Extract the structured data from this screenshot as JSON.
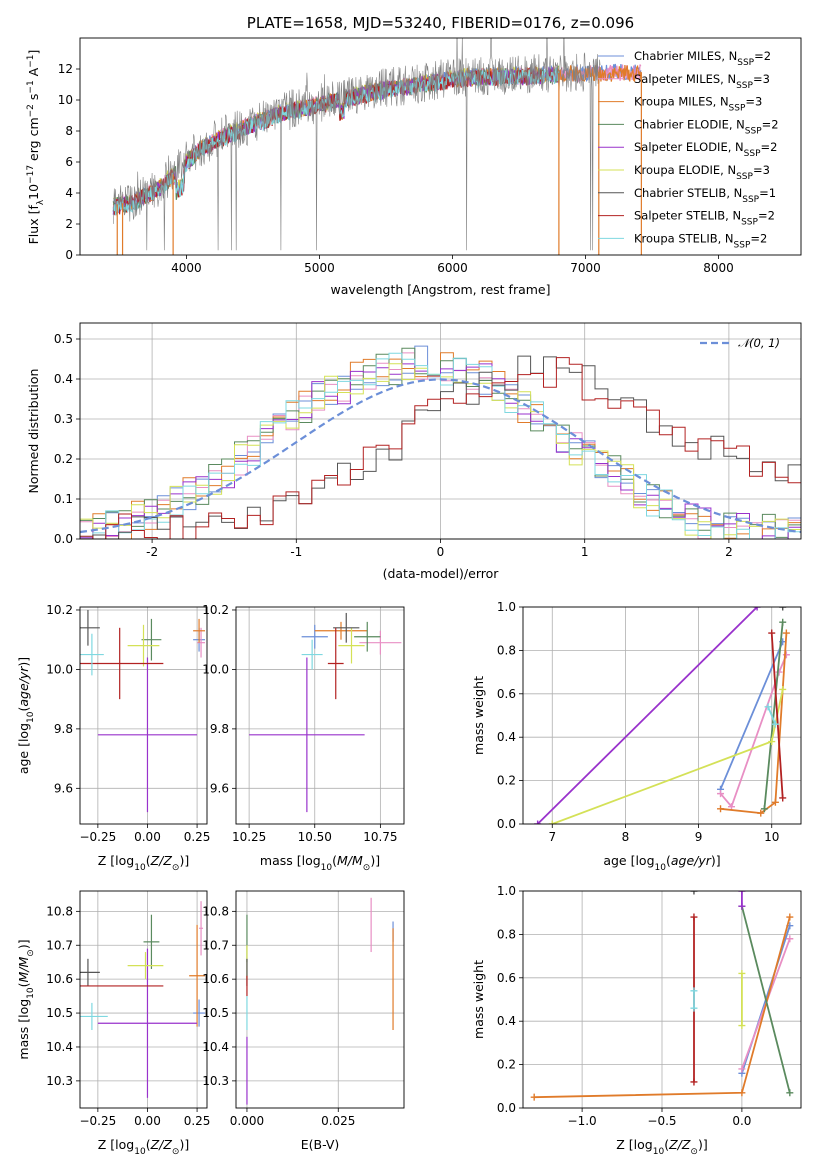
{
  "figure_title": "PLATE=1658, MJD=53240, FIBERID=0176, z=0.096",
  "chart_data": [
    {
      "id": "spectrum",
      "type": "line",
      "title": "PLATE=1658, MJD=53240, FIBERID=0176, z=0.096",
      "xlabel": "wavelength [Angstrom, rest frame]",
      "ylabel": "Flux [f",
      "xlim": [
        3200,
        8620
      ],
      "ylim": [
        0,
        14
      ],
      "xticks": [
        4000,
        5000,
        6000,
        7000,
        8000
      ],
      "yticks": [
        0,
        2,
        4,
        6,
        8,
        10,
        12
      ],
      "grid": false,
      "legend_position": "top-right",
      "legend": [
        {
          "name": "Chabrier MILES, N",
          "ssp": "=2",
          "color": "#6c8fd8"
        },
        {
          "name": "Salpeter MILES, N",
          "ssp": "=3",
          "color": "#e88fc4"
        },
        {
          "name": "Kroupa MILES, N",
          "ssp": "=3",
          "color": "#e07b2a"
        },
        {
          "name": "Chabrier ELODIE, N",
          "ssp": "=2",
          "color": "#5a8a5e"
        },
        {
          "name": "Salpeter ELODIE, N",
          "ssp": "=2",
          "color": "#9932cc"
        },
        {
          "name": "Kroupa ELODIE, N",
          "ssp": "=3",
          "color": "#d4e157"
        },
        {
          "name": "Chabrier STELIB, N",
          "ssp": "=1",
          "color": "#555555"
        },
        {
          "name": "Salpeter STELIB, N",
          "ssp": "=2",
          "color": "#b22222"
        },
        {
          "name": "Kroupa STELIB, N",
          "ssp": "=2",
          "color": "#7fd8e0"
        }
      ],
      "continuum": [
        [
          3450,
          3.2
        ],
        [
          3600,
          3.5
        ],
        [
          3800,
          4.4
        ],
        [
          3950,
          5.6
        ],
        [
          4100,
          6.9
        ],
        [
          4300,
          7.8
        ],
        [
          4500,
          8.5
        ],
        [
          4700,
          9.2
        ],
        [
          4900,
          9.6
        ],
        [
          5100,
          10.0
        ],
        [
          5300,
          10.4
        ],
        [
          5500,
          10.8
        ],
        [
          5700,
          11.0
        ],
        [
          5900,
          11.3
        ],
        [
          6100,
          11.5
        ],
        [
          6300,
          11.6
        ],
        [
          6500,
          11.6
        ],
        [
          6700,
          11.7
        ],
        [
          6900,
          11.8
        ],
        [
          7100,
          11.8
        ],
        [
          7400,
          11.8
        ]
      ],
      "spikes": [
        [
          3480,
          0
        ],
        [
          3520,
          0
        ],
        [
          3900,
          0
        ],
        [
          6800,
          0
        ],
        [
          7100,
          0
        ],
        [
          7420,
          0
        ]
      ]
    },
    {
      "id": "residuals",
      "type": "line",
      "xlabel": "(data-model)/error",
      "ylabel": "Normed distribution",
      "xlim": [
        -2.5,
        2.5
      ],
      "ylim": [
        0,
        0.54
      ],
      "xticks": [
        -2,
        -1,
        0,
        1,
        2
      ],
      "yticks": [
        0.0,
        0.1,
        0.2,
        0.3,
        0.4,
        0.5
      ],
      "grid": true,
      "legend_position": "top-right",
      "legend_label": "𝒩(0, 1)",
      "gaussian_color": "#6c8fd8",
      "centered_hist": [
        0.02,
        0.03,
        0.03,
        0.04,
        0.05,
        0.06,
        0.08,
        0.09,
        0.11,
        0.13,
        0.15,
        0.17,
        0.2,
        0.22,
        0.26,
        0.28,
        0.31,
        0.33,
        0.35,
        0.37,
        0.38,
        0.4,
        0.41,
        0.42,
        0.43,
        0.44,
        0.44,
        0.44,
        0.43,
        0.42,
        0.41,
        0.4,
        0.38,
        0.35,
        0.33,
        0.31,
        0.28,
        0.26,
        0.23,
        0.21,
        0.19,
        0.17,
        0.15,
        0.12,
        0.1,
        0.08,
        0.07,
        0.05,
        0.04,
        0.03,
        0.02,
        0.02,
        0.02,
        0.02,
        0.02,
        0.02
      ],
      "shifted_hist": [
        0.01,
        0.01,
        0.02,
        0.02,
        0.02,
        0.03,
        0.03,
        0.03,
        0.04,
        0.04,
        0.05,
        0.05,
        0.06,
        0.06,
        0.07,
        0.08,
        0.1,
        0.11,
        0.12,
        0.14,
        0.15,
        0.17,
        0.19,
        0.21,
        0.23,
        0.26,
        0.29,
        0.31,
        0.33,
        0.35,
        0.37,
        0.39,
        0.4,
        0.41,
        0.42,
        0.42,
        0.42,
        0.41,
        0.4,
        0.39,
        0.37,
        0.35,
        0.33,
        0.31,
        0.29,
        0.27,
        0.26,
        0.25,
        0.24,
        0.23,
        0.22,
        0.21,
        0.2,
        0.19,
        0.18,
        0.17
      ]
    },
    {
      "id": "age-vs-Z",
      "type": "scatter",
      "xlabel": "Z [log",
      "ylabel": "age  [log",
      "xlim": [
        -0.34,
        0.3
      ],
      "ylim": [
        9.48,
        10.21
      ],
      "xticks": [
        -0.25,
        0.0,
        0.25
      ],
      "xticklabels": [
        "−0.25",
        "0.00",
        "0.25"
      ],
      "yticks": [
        9.6,
        9.8,
        10.0,
        10.2
      ],
      "grid": true,
      "points": [
        {
          "series": "Chabrier MILES",
          "x": 0.26,
          "y": 10.1,
          "ex": 0.03,
          "ey": 0.04
        },
        {
          "series": "Salpeter MILES",
          "x": 0.27,
          "y": 10.09,
          "ex": 0.02,
          "ey": 0.05
        },
        {
          "series": "Kroupa MILES",
          "x": 0.26,
          "y": 10.13,
          "ex": 0.03,
          "ey": 0.04
        },
        {
          "series": "Chabrier ELODIE",
          "x": 0.02,
          "y": 10.1,
          "ex": 0.05,
          "ey": 0.07
        },
        {
          "series": "Salpeter ELODIE",
          "x": 0.0,
          "y": 9.78,
          "ex": 0.25,
          "ey": 0.26
        },
        {
          "series": "Kroupa ELODIE",
          "x": -0.02,
          "y": 10.08,
          "ex": 0.08,
          "ey": 0.07
        },
        {
          "series": "Chabrier STELIB",
          "x": -0.3,
          "y": 10.14,
          "ex": 0.06,
          "ey": 0.06
        },
        {
          "series": "Salpeter STELIB",
          "x": -0.14,
          "y": 10.02,
          "ex": 0.22,
          "ey": 0.12
        },
        {
          "series": "Kroupa STELIB",
          "x": -0.28,
          "y": 10.05,
          "ex": 0.06,
          "ey": 0.07
        }
      ]
    },
    {
      "id": "age-vs-mass",
      "type": "scatter",
      "xlabel": "mass [log",
      "ylabel": "",
      "xlim": [
        10.2,
        10.84
      ],
      "ylim": [
        9.48,
        10.21
      ],
      "xticks": [
        10.25,
        10.5,
        10.75
      ],
      "xticklabels": [
        "10.25",
        "10.50",
        "10.75"
      ],
      "yticks": [
        9.6,
        9.8,
        10.0,
        10.2
      ],
      "grid": true,
      "points": [
        {
          "series": "Chabrier MILES",
          "x": 10.5,
          "y": 10.11,
          "ex": 0.05,
          "ey": 0.04
        },
        {
          "series": "Salpeter MILES",
          "x": 10.75,
          "y": 10.09,
          "ex": 0.08,
          "ey": 0.04
        },
        {
          "series": "Kroupa MILES",
          "x": 10.6,
          "y": 10.13,
          "ex": 0.1,
          "ey": 0.03
        },
        {
          "series": "Chabrier ELODIE",
          "x": 10.7,
          "y": 10.11,
          "ex": 0.05,
          "ey": 0.05
        },
        {
          "series": "Salpeter ELODIE",
          "x": 10.47,
          "y": 9.78,
          "ex": 0.22,
          "ey": 0.26
        },
        {
          "series": "Kroupa ELODIE",
          "x": 10.64,
          "y": 10.08,
          "ex": 0.05,
          "ey": 0.06
        },
        {
          "series": "Chabrier STELIB",
          "x": 10.62,
          "y": 10.14,
          "ex": 0.05,
          "ey": 0.05
        },
        {
          "series": "Salpeter STELIB",
          "x": 10.58,
          "y": 10.02,
          "ex": 0.03,
          "ey": 0.12
        },
        {
          "series": "Kroupa STELIB",
          "x": 10.49,
          "y": 10.05,
          "ex": 0.04,
          "ey": 0.05
        }
      ]
    },
    {
      "id": "weight-vs-age",
      "type": "line",
      "xlabel": "age  [log",
      "ylabel": "mass weight",
      "xlim": [
        6.6,
        10.4
      ],
      "ylim": [
        0,
        1
      ],
      "xticks": [
        7,
        8,
        9,
        10
      ],
      "yticks": [
        0.0,
        0.2,
        0.4,
        0.6,
        0.8,
        1.0
      ],
      "grid": true,
      "series": [
        {
          "name": "Chabrier MILES",
          "x": [
            9.3,
            10.15
          ],
          "y": [
            0.16,
            0.84
          ]
        },
        {
          "name": "Salpeter MILES",
          "x": [
            9.3,
            9.45,
            10.1,
            10.2
          ],
          "y": [
            0.14,
            0.08,
            0.7,
            0.78
          ]
        },
        {
          "name": "Kroupa MILES",
          "x": [
            9.3,
            9.85,
            10.05,
            10.2
          ],
          "y": [
            0.07,
            0.05,
            0.1,
            0.88
          ]
        },
        {
          "name": "Chabrier ELODIE",
          "x": [
            9.9,
            10.15
          ],
          "y": [
            0.07,
            0.93
          ]
        },
        {
          "name": "Salpeter ELODIE",
          "x": [
            6.8,
            9.8
          ],
          "y": [
            0.0,
            1.0
          ]
        },
        {
          "name": "Kroupa ELODIE",
          "x": [
            7.0,
            10.0,
            10.15
          ],
          "y": [
            0.0,
            0.38,
            0.62
          ]
        },
        {
          "name": "Chabrier STELIB",
          "x": [
            10.15
          ],
          "y": [
            1.0
          ]
        },
        {
          "name": "Salpeter STELIB",
          "x": [
            10.0,
            10.15
          ],
          "y": [
            0.88,
            0.12
          ]
        },
        {
          "name": "Kroupa STELIB",
          "x": [
            9.95,
            10.05
          ],
          "y": [
            0.54,
            0.46
          ]
        }
      ]
    },
    {
      "id": "mass-vs-Z",
      "type": "scatter",
      "xlabel": "Z [log",
      "ylabel": "mass [log",
      "xlim": [
        -0.34,
        0.3
      ],
      "ylim": [
        10.22,
        10.86
      ],
      "xticks": [
        -0.25,
        0.0,
        0.25
      ],
      "xticklabels": [
        "−0.25",
        "0.00",
        "0.25"
      ],
      "yticks": [
        10.3,
        10.4,
        10.5,
        10.6,
        10.7,
        10.8
      ],
      "grid": true,
      "points": [
        {
          "series": "Chabrier MILES",
          "x": 0.26,
          "y": 10.5,
          "ex": 0.03,
          "ey": 0.04
        },
        {
          "series": "Salpeter MILES",
          "x": 0.27,
          "y": 10.75,
          "ex": 0.01,
          "ey": 0.08
        },
        {
          "series": "Kroupa MILES",
          "x": 0.25,
          "y": 10.61,
          "ex": 0.04,
          "ey": 0.15
        },
        {
          "series": "Chabrier ELODIE",
          "x": 0.02,
          "y": 10.71,
          "ex": 0.04,
          "ey": 0.08
        },
        {
          "series": "Salpeter ELODIE",
          "x": 0.0,
          "y": 10.47,
          "ex": 0.25,
          "ey": 0.22
        },
        {
          "series": "Kroupa ELODIE",
          "x": -0.01,
          "y": 10.64,
          "ex": 0.09,
          "ey": 0.04
        },
        {
          "series": "Chabrier STELIB",
          "x": -0.3,
          "y": 10.62,
          "ex": 0.06,
          "ey": 0.04
        },
        {
          "series": "Salpeter STELIB",
          "x": -0.14,
          "y": 10.58,
          "ex": 0.22,
          "ey": 0.0
        },
        {
          "series": "Kroupa STELIB",
          "x": -0.28,
          "y": 10.49,
          "ex": 0.08,
          "ey": 0.04
        }
      ]
    },
    {
      "id": "mass-vs-EBV",
      "type": "scatter",
      "xlabel": "E(B-V)",
      "ylabel": "",
      "xlim": [
        -0.003,
        0.043
      ],
      "ylim": [
        10.22,
        10.86
      ],
      "xticks": [
        0.0,
        0.025
      ],
      "xticklabels": [
        "0.000",
        "0.025"
      ],
      "yticks": [
        10.3,
        10.4,
        10.5,
        10.6,
        10.7,
        10.8
      ],
      "grid": true,
      "points": [
        {
          "series": "Chabrier MILES",
          "x": 0.04,
          "y": 10.74,
          "ex": 0.0,
          "ey": 0.03
        },
        {
          "series": "Salpeter MILES",
          "x": 0.034,
          "y": 10.76,
          "ex": 0.0,
          "ey": 0.08
        },
        {
          "series": "Kroupa MILES",
          "x": 0.04,
          "y": 10.6,
          "ex": 0.0,
          "ey": 0.15
        },
        {
          "series": "Chabrier ELODIE",
          "x": 0.0,
          "y": 10.72,
          "ex": 0.0,
          "ey": 0.07
        },
        {
          "series": "Salpeter ELODIE",
          "x": 0.0,
          "y": 10.33,
          "ex": 0.0,
          "ey": 0.1
        },
        {
          "series": "Kroupa ELODIE",
          "x": 0.0,
          "y": 10.65,
          "ex": 0.0,
          "ey": 0.05
        },
        {
          "series": "Chabrier STELIB",
          "x": 0.0,
          "y": 10.62,
          "ex": 0.0,
          "ey": 0.04
        },
        {
          "series": "Salpeter STELIB",
          "x": 0.0,
          "y": 10.58,
          "ex": 0.0,
          "ey": 0.03
        },
        {
          "series": "Kroupa STELIB",
          "x": 0.0,
          "y": 10.5,
          "ex": 0.0,
          "ey": 0.05
        }
      ]
    },
    {
      "id": "weight-vs-Z",
      "type": "line",
      "xlabel": "Z [log",
      "ylabel": "mass weight",
      "xlim": [
        -1.37,
        0.37
      ],
      "ylim": [
        0,
        1
      ],
      "xticks": [
        -1.0,
        -0.5,
        0.0
      ],
      "xticklabels": [
        "−1.0",
        "−0.5",
        "0.0"
      ],
      "yticks": [
        0.0,
        0.2,
        0.4,
        0.6,
        0.8,
        1.0
      ],
      "grid": true,
      "series": [
        {
          "name": "Chabrier MILES",
          "x": [
            0.0,
            0.3
          ],
          "y": [
            0.16,
            0.84
          ]
        },
        {
          "name": "Salpeter MILES",
          "x": [
            0.0,
            0.3
          ],
          "y": [
            0.18,
            0.78
          ]
        },
        {
          "name": "Kroupa MILES",
          "x": [
            -1.3,
            0.0,
            0.3
          ],
          "y": [
            0.05,
            0.07,
            0.88
          ]
        },
        {
          "name": "Chabrier ELODIE",
          "x": [
            0.0,
            0.3
          ],
          "y": [
            0.93,
            0.07
          ]
        },
        {
          "name": "Salpeter ELODIE",
          "x": [
            0.0,
            0.0
          ],
          "y": [
            1.0,
            0.93
          ]
        },
        {
          "name": "Kroupa ELODIE",
          "x": [
            0.0,
            0.0
          ],
          "y": [
            0.62,
            0.38
          ]
        },
        {
          "name": "Chabrier STELIB",
          "x": [
            -0.3
          ],
          "y": [
            1.0
          ]
        },
        {
          "name": "Salpeter STELIB",
          "x": [
            -0.3,
            -0.3
          ],
          "y": [
            0.88,
            0.12
          ]
        },
        {
          "name": "Kroupa STELIB",
          "x": [
            -0.3,
            -0.3
          ],
          "y": [
            0.54,
            0.46
          ]
        }
      ]
    }
  ],
  "series_colors": {
    "Chabrier MILES": "#6c8fd8",
    "Salpeter MILES": "#e88fc4",
    "Kroupa MILES": "#e07b2a",
    "Chabrier ELODIE": "#5a8a5e",
    "Salpeter ELODIE": "#9932cc",
    "Kroupa ELODIE": "#d4e157",
    "Chabrier STELIB": "#555555",
    "Salpeter STELIB": "#b22222",
    "Kroupa STELIB": "#7fd8e0"
  }
}
